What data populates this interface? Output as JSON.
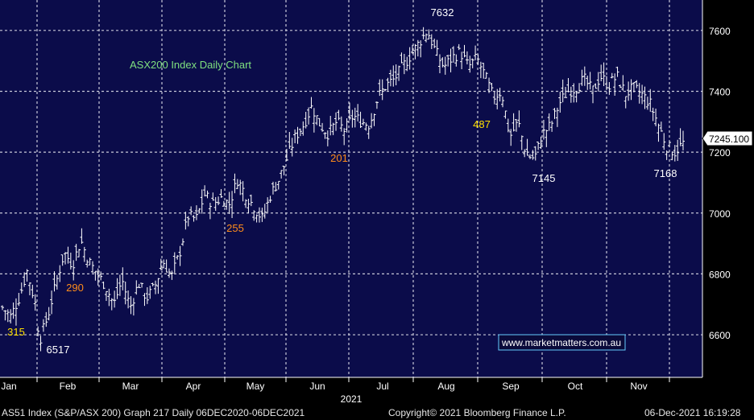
{
  "colors": {
    "background": "#000000",
    "plot_bg": "#0b0c4a",
    "grid": "#c8c8d8",
    "price_bar": "#ffffff",
    "title_text": "#7fe07f",
    "yellow_label": "#ffe000",
    "orange_label": "#ff8c1a",
    "white_label": "#ffffff",
    "last_price_box": "#ffffff",
    "watermark_border": "#66ccff"
  },
  "chart_data": {
    "type": "ohlc",
    "title": "ASX200 Index Daily Chart",
    "x_axis": {
      "months": [
        "Jan",
        "Feb",
        "Mar",
        "Apr",
        "May",
        "Jun",
        "Jul",
        "Aug",
        "Sep",
        "Oct",
        "Nov"
      ],
      "year_label": "2021"
    },
    "y_axis": {
      "ticks": [
        "6600",
        "6800",
        "7000",
        "7200",
        "7400",
        "7600"
      ],
      "ylim": [
        6460,
        7700
      ],
      "position": "right"
    },
    "last_price": "7245.100",
    "grid": true,
    "watermark": "www.marketmatters.com.au",
    "series_close": [
      [
        0.0,
        6690
      ],
      [
        0.02,
        6660
      ],
      [
        0.04,
        6720
      ],
      [
        0.06,
        6810
      ],
      [
        0.08,
        6700
      ],
      [
        0.09,
        6580
      ],
      [
        0.11,
        6660
      ],
      [
        0.13,
        6770
      ],
      [
        0.15,
        6870
      ],
      [
        0.17,
        6830
      ],
      [
        0.19,
        6910
      ],
      [
        0.21,
        6840
      ],
      [
        0.23,
        6800
      ],
      [
        0.25,
        6760
      ],
      [
        0.27,
        6700
      ],
      [
        0.29,
        6780
      ],
      [
        0.31,
        6690
      ],
      [
        0.33,
        6770
      ],
      [
        0.35,
        6720
      ],
      [
        0.37,
        6760
      ],
      [
        0.39,
        6840
      ],
      [
        0.41,
        6790
      ],
      [
        0.43,
        6870
      ],
      [
        0.45,
        6990
      ],
      [
        0.47,
        6980
      ],
      [
        0.49,
        7060
      ],
      [
        0.51,
        7030
      ],
      [
        0.53,
        7050
      ],
      [
        0.55,
        7030
      ],
      [
        0.57,
        7110
      ],
      [
        0.59,
        7060
      ],
      [
        0.61,
        7020
      ],
      [
        0.63,
        6980
      ],
      [
        0.65,
        7060
      ],
      [
        0.67,
        7110
      ],
      [
        0.69,
        7180
      ],
      [
        0.71,
        7250
      ],
      [
        0.73,
        7290
      ],
      [
        0.75,
        7350
      ],
      [
        0.77,
        7290
      ],
      [
        0.79,
        7260
      ],
      [
        0.81,
        7300
      ],
      [
        0.83,
        7270
      ],
      [
        0.85,
        7320
      ],
      [
        0.87,
        7300
      ],
      [
        0.89,
        7290
      ],
      [
        0.91,
        7380
      ],
      [
        0.93,
        7420
      ],
      [
        0.95,
        7440
      ],
      [
        0.97,
        7480
      ],
      [
        0.99,
        7520
      ],
      [
        1.01,
        7560
      ],
      [
        1.03,
        7600
      ],
      [
        1.05,
        7530
      ],
      [
        1.07,
        7480
      ],
      [
        1.09,
        7510
      ],
      [
        1.11,
        7530
      ],
      [
        1.13,
        7480
      ],
      [
        1.15,
        7510
      ],
      [
        1.17,
        7450
      ],
      [
        1.19,
        7380
      ],
      [
        1.21,
        7400
      ],
      [
        1.23,
        7250
      ],
      [
        1.25,
        7300
      ],
      [
        1.27,
        7190
      ],
      [
        1.29,
        7180
      ],
      [
        1.31,
        7260
      ],
      [
        1.33,
        7290
      ],
      [
        1.35,
        7360
      ],
      [
        1.37,
        7400
      ],
      [
        1.39,
        7410
      ],
      [
        1.41,
        7440
      ],
      [
        1.43,
        7400
      ],
      [
        1.45,
        7450
      ],
      [
        1.47,
        7420
      ],
      [
        1.49,
        7450
      ],
      [
        1.51,
        7390
      ],
      [
        1.53,
        7410
      ],
      [
        1.55,
        7390
      ],
      [
        1.57,
        7360
      ],
      [
        1.59,
        7290
      ],
      [
        1.61,
        7220
      ],
      [
        1.63,
        7200
      ],
      [
        1.65,
        7230
      ]
    ]
  },
  "annotations": [
    {
      "text": "7632",
      "style": "white"
    },
    {
      "text": "315",
      "style": "yellow"
    },
    {
      "text": "6517",
      "style": "white"
    },
    {
      "text": "290",
      "style": "orange"
    },
    {
      "text": "255",
      "style": "orange"
    },
    {
      "text": "201",
      "style": "orange"
    },
    {
      "text": "487",
      "style": "yellow"
    },
    {
      "text": "7145",
      "style": "white"
    },
    {
      "text": "7168",
      "style": "white"
    }
  ],
  "footer": {
    "left": "AS51 Index (S&P/ASX 200) Graph 217  Daily 06DEC2020-06DEC2021",
    "center": "Copyright© 2021 Bloomberg Finance L.P.",
    "right": "06-Dec-2021 16:19:28"
  }
}
